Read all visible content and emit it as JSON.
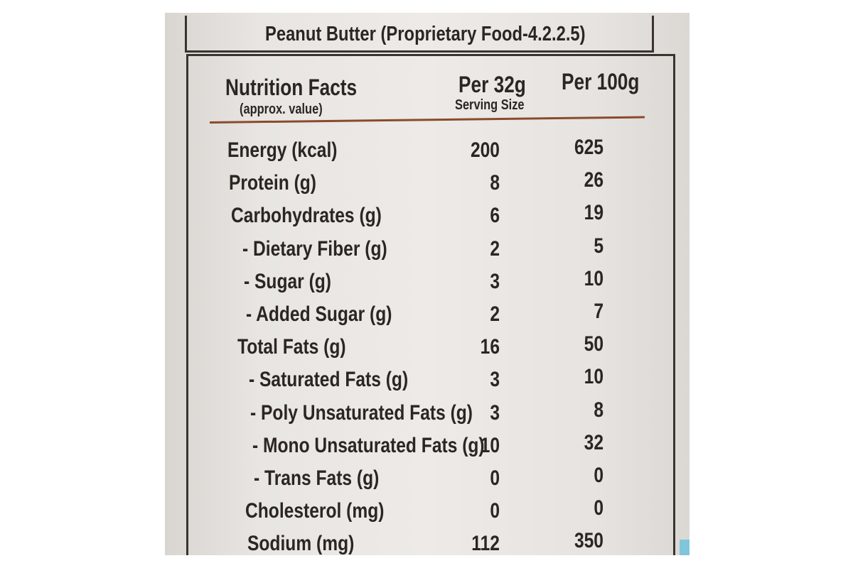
{
  "product_title": "Peanut Butter (Proprietary Food-4.2.2.5)",
  "header": {
    "title": "Nutrition Facts",
    "subtitle": "(approx. value)",
    "col1": "Per 32g",
    "col1_sub": "Serving Size",
    "col2": "Per 100g"
  },
  "rows": [
    {
      "name": "Energy (kcal)",
      "per_serving": "200",
      "per_100g": "625"
    },
    {
      "name": "Protein (g)",
      "per_serving": "8",
      "per_100g": "26"
    },
    {
      "name": "Carbohydrates (g)",
      "per_serving": "6",
      "per_100g": "19"
    },
    {
      "name": "- Dietary Fiber (g)",
      "per_serving": "2",
      "per_100g": "5"
    },
    {
      "name": "- Sugar (g)",
      "per_serving": "3",
      "per_100g": "10"
    },
    {
      "name": "- Added Sugar (g)",
      "per_serving": "2",
      "per_100g": "7"
    },
    {
      "name": "Total Fats (g)",
      "per_serving": "16",
      "per_100g": "50"
    },
    {
      "name": "- Saturated Fats (g)",
      "per_serving": "3",
      "per_100g": "10"
    },
    {
      "name": "- Poly Unsaturated Fats (g)",
      "per_serving": "3",
      "per_100g": "8"
    },
    {
      "name": "- Mono Unsaturated Fats (g)",
      "per_serving": "10",
      "per_100g": "32"
    },
    {
      "name": "- Trans Fats (g)",
      "per_serving": "0",
      "per_100g": "0"
    },
    {
      "name": "Cholesterol (mg)",
      "per_serving": "0",
      "per_100g": "0"
    },
    {
      "name": "Sodium (mg)",
      "per_serving": "112",
      "per_100g": "350"
    }
  ]
}
